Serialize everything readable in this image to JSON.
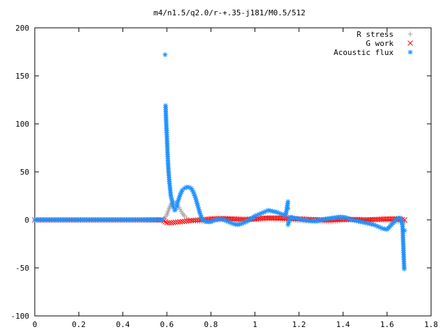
{
  "chart_data": {
    "type": "scatter",
    "title": "m4/n1.5/q2.0/r-+.35-j181/M0.5/512",
    "xlabel": "",
    "ylabel": "",
    "xlim": [
      0,
      1.8
    ],
    "ylim": [
      -100,
      200
    ],
    "x_ticks": [
      "0",
      "0.2",
      "0.4",
      "0.6",
      "0.8",
      "1",
      "1.2",
      "1.4",
      "1.6",
      "1.8"
    ],
    "y_ticks": [
      "200",
      "150",
      "100",
      "50",
      "0",
      "-50",
      "-100"
    ],
    "grid": false,
    "legend_position": "top-right",
    "series": [
      {
        "name": "R stress",
        "marker": "+",
        "color": "#a0a0a0",
        "points": [
          [
            0.0,
            0
          ],
          [
            0.1,
            0
          ],
          [
            0.2,
            0
          ],
          [
            0.3,
            0
          ],
          [
            0.4,
            0
          ],
          [
            0.5,
            0
          ],
          [
            0.58,
            0
          ],
          [
            0.6,
            5
          ],
          [
            0.61,
            12
          ],
          [
            0.62,
            17
          ],
          [
            0.63,
            19
          ],
          [
            0.64,
            18
          ],
          [
            0.65,
            15
          ],
          [
            0.66,
            11
          ],
          [
            0.67,
            7
          ],
          [
            0.68,
            4
          ],
          [
            0.69,
            2
          ],
          [
            0.7,
            0.5
          ],
          [
            0.72,
            -1
          ],
          [
            0.74,
            -2
          ],
          [
            0.76,
            -2
          ],
          [
            0.8,
            -1
          ],
          [
            0.85,
            0
          ],
          [
            0.9,
            0
          ],
          [
            1.0,
            0
          ],
          [
            1.05,
            1
          ],
          [
            1.1,
            0
          ],
          [
            1.15,
            0
          ],
          [
            1.2,
            -1
          ],
          [
            1.3,
            -2
          ],
          [
            1.35,
            -2
          ],
          [
            1.4,
            -1
          ],
          [
            1.45,
            0
          ],
          [
            1.5,
            0
          ],
          [
            1.55,
            0
          ],
          [
            1.6,
            -1
          ],
          [
            1.65,
            -2
          ],
          [
            1.68,
            -3
          ]
        ]
      },
      {
        "name": "G work",
        "marker": "x",
        "color": "#ff0000",
        "points": [
          [
            0.0,
            0
          ],
          [
            0.1,
            0
          ],
          [
            0.2,
            0
          ],
          [
            0.3,
            0
          ],
          [
            0.4,
            0
          ],
          [
            0.5,
            0
          ],
          [
            0.58,
            0
          ],
          [
            0.6,
            -3
          ],
          [
            0.62,
            -3
          ],
          [
            0.64,
            -2.5
          ],
          [
            0.66,
            -2
          ],
          [
            0.68,
            -1.5
          ],
          [
            0.7,
            -1
          ],
          [
            0.72,
            -0.5
          ],
          [
            0.75,
            0
          ],
          [
            0.8,
            1
          ],
          [
            0.85,
            1.5
          ],
          [
            0.9,
            1
          ],
          [
            0.95,
            0.5
          ],
          [
            1.0,
            1
          ],
          [
            1.05,
            2
          ],
          [
            1.1,
            2
          ],
          [
            1.15,
            1.5
          ],
          [
            1.2,
            1
          ],
          [
            1.25,
            0.5
          ],
          [
            1.3,
            0
          ],
          [
            1.35,
            0
          ],
          [
            1.4,
            0.5
          ],
          [
            1.45,
            0.5
          ],
          [
            1.5,
            0
          ],
          [
            1.55,
            0.5
          ],
          [
            1.6,
            1
          ],
          [
            1.65,
            1
          ],
          [
            1.68,
            0
          ]
        ]
      },
      {
        "name": "Acoustic flux",
        "marker": "*",
        "color": "#1e90ff",
        "points": [
          [
            0.0,
            0
          ],
          [
            0.05,
            0
          ],
          [
            0.1,
            0
          ],
          [
            0.15,
            0
          ],
          [
            0.2,
            0
          ],
          [
            0.25,
            0
          ],
          [
            0.3,
            0
          ],
          [
            0.35,
            0
          ],
          [
            0.4,
            0
          ],
          [
            0.45,
            0
          ],
          [
            0.5,
            0
          ],
          [
            0.55,
            0
          ],
          [
            0.58,
            0
          ],
          [
            0.592,
            172
          ],
          [
            0.594,
            119
          ],
          [
            0.597,
            101
          ],
          [
            0.6,
            87
          ],
          [
            0.603,
            70
          ],
          [
            0.607,
            52
          ],
          [
            0.612,
            38
          ],
          [
            0.618,
            25
          ],
          [
            0.625,
            18
          ],
          [
            0.63,
            13
          ],
          [
            0.635,
            10
          ],
          [
            0.64,
            11
          ],
          [
            0.645,
            14
          ],
          [
            0.65,
            19
          ],
          [
            0.66,
            26
          ],
          [
            0.67,
            31
          ],
          [
            0.68,
            33
          ],
          [
            0.69,
            34
          ],
          [
            0.7,
            34
          ],
          [
            0.71,
            33
          ],
          [
            0.72,
            29
          ],
          [
            0.73,
            23
          ],
          [
            0.74,
            15
          ],
          [
            0.75,
            7
          ],
          [
            0.76,
            1
          ],
          [
            0.78,
            -2
          ],
          [
            0.8,
            -2
          ],
          [
            0.82,
            0
          ],
          [
            0.84,
            1
          ],
          [
            0.86,
            0
          ],
          [
            0.88,
            -2
          ],
          [
            0.9,
            -4
          ],
          [
            0.92,
            -5
          ],
          [
            0.94,
            -4
          ],
          [
            0.96,
            -2
          ],
          [
            0.98,
            1
          ],
          [
            1.0,
            4
          ],
          [
            1.02,
            6
          ],
          [
            1.04,
            8
          ],
          [
            1.06,
            10
          ],
          [
            1.08,
            9
          ],
          [
            1.1,
            8
          ],
          [
            1.12,
            6
          ],
          [
            1.14,
            5
          ],
          [
            1.15,
            19
          ],
          [
            1.15,
            12
          ],
          [
            1.15,
            -5
          ],
          [
            1.16,
            3
          ],
          [
            1.18,
            2
          ],
          [
            1.2,
            1
          ],
          [
            1.22,
            0
          ],
          [
            1.25,
            -1
          ],
          [
            1.28,
            -1
          ],
          [
            1.3,
            0
          ],
          [
            1.32,
            1
          ],
          [
            1.35,
            2
          ],
          [
            1.38,
            3
          ],
          [
            1.4,
            3
          ],
          [
            1.42,
            2
          ],
          [
            1.44,
            0
          ],
          [
            1.46,
            -1
          ],
          [
            1.48,
            -2
          ],
          [
            1.5,
            -3
          ],
          [
            1.52,
            -4
          ],
          [
            1.54,
            -5
          ],
          [
            1.56,
            -7
          ],
          [
            1.58,
            -9
          ],
          [
            1.6,
            -10
          ],
          [
            1.62,
            -5
          ],
          [
            1.64,
            0
          ],
          [
            1.65,
            2
          ],
          [
            1.66,
            2
          ],
          [
            1.67,
            -5
          ],
          [
            1.672,
            -16
          ],
          [
            1.675,
            -34
          ],
          [
            1.678,
            -51
          ],
          [
            1.68,
            -11
          ]
        ]
      }
    ]
  }
}
